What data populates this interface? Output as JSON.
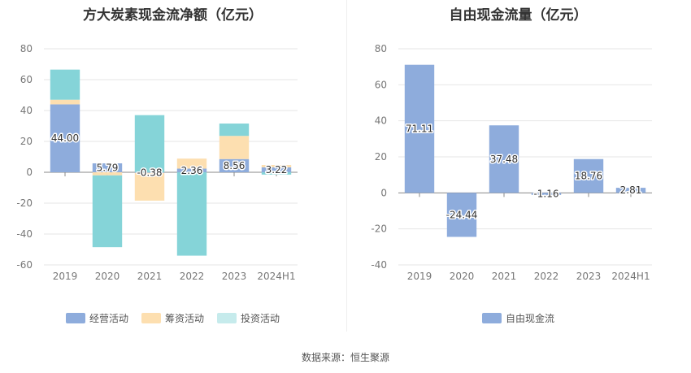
{
  "source": "数据来源：恒生聚源",
  "chart_data": [
    {
      "id": "net-cash-flow",
      "type": "bar",
      "stacked": true,
      "title": "方大炭素现金流净额（亿元）",
      "categories": [
        "2019",
        "2020",
        "2021",
        "2022",
        "2023",
        "2024H1"
      ],
      "ylim": [
        -60,
        80
      ],
      "yticks": [
        -60,
        -40,
        -20,
        0,
        20,
        40,
        60,
        80
      ],
      "ytick_labels": [
        "-60",
        "-40",
        "-20",
        "0",
        "20",
        "40",
        "60",
        "80"
      ],
      "grid": true,
      "legend_position": "bottom",
      "series": [
        {
          "name": "经营活动",
          "color": "#8eacdc",
          "values": [
            44.0,
            5.79,
            -0.38,
            2.36,
            8.56,
            3.22
          ],
          "labels": [
            "44.00",
            "5.79",
            "-0.38",
            "2.36",
            "8.56",
            "3.22"
          ]
        },
        {
          "name": "筹资活动",
          "color": "#fddfb0",
          "values": [
            3,
            -2,
            -18,
            6.5,
            15,
            1.5
          ]
        },
        {
          "name": "投资活动",
          "color": "#85d4d8",
          "values": [
            19.5,
            -46.5,
            37,
            -54,
            8,
            -1.5
          ]
        }
      ]
    },
    {
      "id": "free-cash-flow",
      "type": "bar",
      "stacked": false,
      "title": "自由现金流量（亿元）",
      "categories": [
        "2019",
        "2020",
        "2021",
        "2022",
        "2023",
        "2024H1"
      ],
      "ylim": [
        -40,
        80
      ],
      "yticks": [
        -40,
        -20,
        0,
        20,
        40,
        60,
        80
      ],
      "ytick_labels": [
        "-40",
        "-20",
        "0",
        "20",
        "40",
        "60",
        "80"
      ],
      "grid": true,
      "legend_position": "bottom",
      "series": [
        {
          "name": "自由现金流",
          "color": "#8eacdc",
          "values": [
            71.11,
            -24.44,
            37.48,
            -1.16,
            18.76,
            2.81
          ],
          "labels": [
            "71.11",
            "-24.44",
            "37.48",
            "-1.16",
            "18.76",
            "2.81"
          ]
        }
      ]
    }
  ]
}
